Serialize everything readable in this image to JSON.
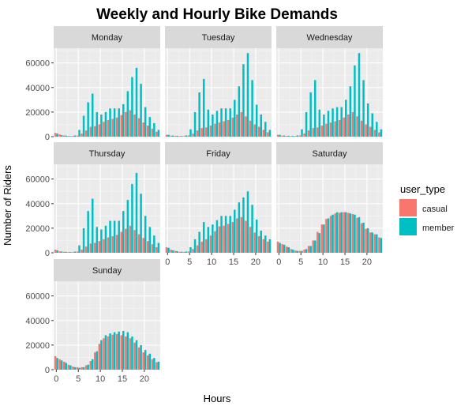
{
  "chart_data": {
    "type": "bar",
    "title": "Weekly and Hourly Bike Demands",
    "xlabel": "Hours",
    "ylabel": "Number of Riders",
    "x_ticks": [
      0,
      5,
      10,
      15,
      20
    ],
    "y_ticks": [
      0,
      20000,
      40000,
      60000
    ],
    "y_tick_labels": [
      "0",
      "20000",
      "40000",
      "60000"
    ],
    "ylim": [
      0,
      72000
    ],
    "xlim": [
      -0.6,
      23.6
    ],
    "legend": {
      "title": "user_type",
      "position": "right",
      "entries": [
        {
          "label": "casual",
          "color": "#F8766D"
        },
        {
          "label": "member",
          "color": "#00BFC4"
        }
      ]
    },
    "x": [
      0,
      1,
      2,
      3,
      4,
      5,
      6,
      7,
      8,
      9,
      10,
      11,
      12,
      13,
      14,
      15,
      16,
      17,
      18,
      19,
      20,
      21,
      22,
      23
    ],
    "facets": [
      {
        "name": "Monday",
        "casual": [
          3000,
          1800,
          1000,
          600,
          500,
          800,
          2500,
          5000,
          8000,
          8500,
          10000,
          12000,
          13500,
          14500,
          15500,
          17500,
          20000,
          21500,
          18000,
          15000,
          11500,
          9000,
          6500,
          4000
        ],
        "member": [
          2500,
          1200,
          800,
          500,
          1000,
          5500,
          17000,
          28000,
          35000,
          20000,
          18000,
          20000,
          23000,
          23000,
          23000,
          26500,
          37000,
          48500,
          56000,
          43000,
          24000,
          16000,
          11000,
          5500
        ]
      },
      {
        "name": "Tuesday",
        "casual": [
          1500,
          800,
          600,
          500,
          500,
          1000,
          2500,
          5000,
          7000,
          7500,
          9000,
          10500,
          11500,
          12500,
          13500,
          15500,
          18000,
          20000,
          16500,
          13000,
          10000,
          8000,
          5500,
          3500
        ],
        "member": [
          1500,
          900,
          700,
          600,
          1000,
          6000,
          20000,
          36000,
          47000,
          22000,
          18000,
          21000,
          23000,
          23000,
          23000,
          30000,
          41000,
          59000,
          68000,
          46000,
          26000,
          18000,
          12000,
          5500
        ]
      },
      {
        "name": "Wednesday",
        "casual": [
          1500,
          800,
          600,
          500,
          500,
          1000,
          2500,
          5000,
          7000,
          7500,
          9000,
          10500,
          11500,
          12500,
          13500,
          15500,
          18000,
          20000,
          16500,
          13000,
          10000,
          8000,
          5500,
          3500
        ],
        "member": [
          1500,
          900,
          700,
          600,
          1000,
          6000,
          20000,
          36000,
          46000,
          22000,
          18000,
          21000,
          23000,
          24000,
          24000,
          30000,
          41000,
          58000,
          68000,
          46000,
          27000,
          19000,
          12000,
          6000
        ]
      },
      {
        "name": "Thursday",
        "casual": [
          2500,
          1200,
          800,
          600,
          500,
          1000,
          2500,
          5000,
          7500,
          8000,
          9500,
          11000,
          12500,
          13500,
          14500,
          17000,
          19500,
          22000,
          18500,
          15000,
          12000,
          9500,
          7000,
          4500
        ],
        "member": [
          2000,
          1000,
          700,
          600,
          1000,
          6000,
          20000,
          34000,
          44000,
          21000,
          19000,
          22000,
          26000,
          26000,
          26000,
          34000,
          43000,
          56000,
          65000,
          48000,
          30000,
          21000,
          14000,
          8000
        ]
      },
      {
        "name": "Friday",
        "casual": [
          4500,
          2500,
          1500,
          800,
          700,
          1000,
          3000,
          6000,
          9000,
          11000,
          14000,
          17500,
          21500,
          22000,
          23500,
          25000,
          28000,
          29000,
          26000,
          21000,
          16500,
          13500,
          11000,
          9000
        ],
        "member": [
          4000,
          2000,
          1200,
          800,
          1000,
          4500,
          11000,
          17000,
          25000,
          21000,
          23000,
          26500,
          30000,
          30000,
          30000,
          35000,
          41000,
          45000,
          50000,
          39000,
          27000,
          18000,
          14000,
          11000
        ]
      },
      {
        "name": "Saturday",
        "casual": [
          9000,
          7000,
          5000,
          3000,
          1800,
          1500,
          2500,
          5500,
          10000,
          17000,
          23000,
          27500,
          30000,
          32000,
          32500,
          33000,
          32500,
          31500,
          28500,
          24000,
          19500,
          16500,
          15000,
          12500
        ],
        "member": [
          8000,
          6500,
          4500,
          2500,
          1500,
          1500,
          3000,
          5500,
          10000,
          16000,
          23000,
          28000,
          31000,
          33000,
          33000,
          33000,
          32000,
          31000,
          29000,
          24500,
          20000,
          16500,
          15000,
          12000
        ]
      },
      {
        "name": "Sunday",
        "casual": [
          11000,
          8500,
          6500,
          4000,
          2500,
          2000,
          2000,
          3500,
          7000,
          14000,
          21000,
          25500,
          27000,
          28500,
          29000,
          28000,
          27000,
          25500,
          22000,
          18000,
          14000,
          11500,
          8500,
          6000
        ],
        "member": [
          9500,
          7500,
          5500,
          3500,
          2000,
          1500,
          2000,
          4000,
          8500,
          15000,
          24000,
          28000,
          29500,
          30500,
          31000,
          31500,
          30500,
          27000,
          24000,
          20000,
          16000,
          13000,
          9500,
          6500
        ]
      }
    ]
  }
}
